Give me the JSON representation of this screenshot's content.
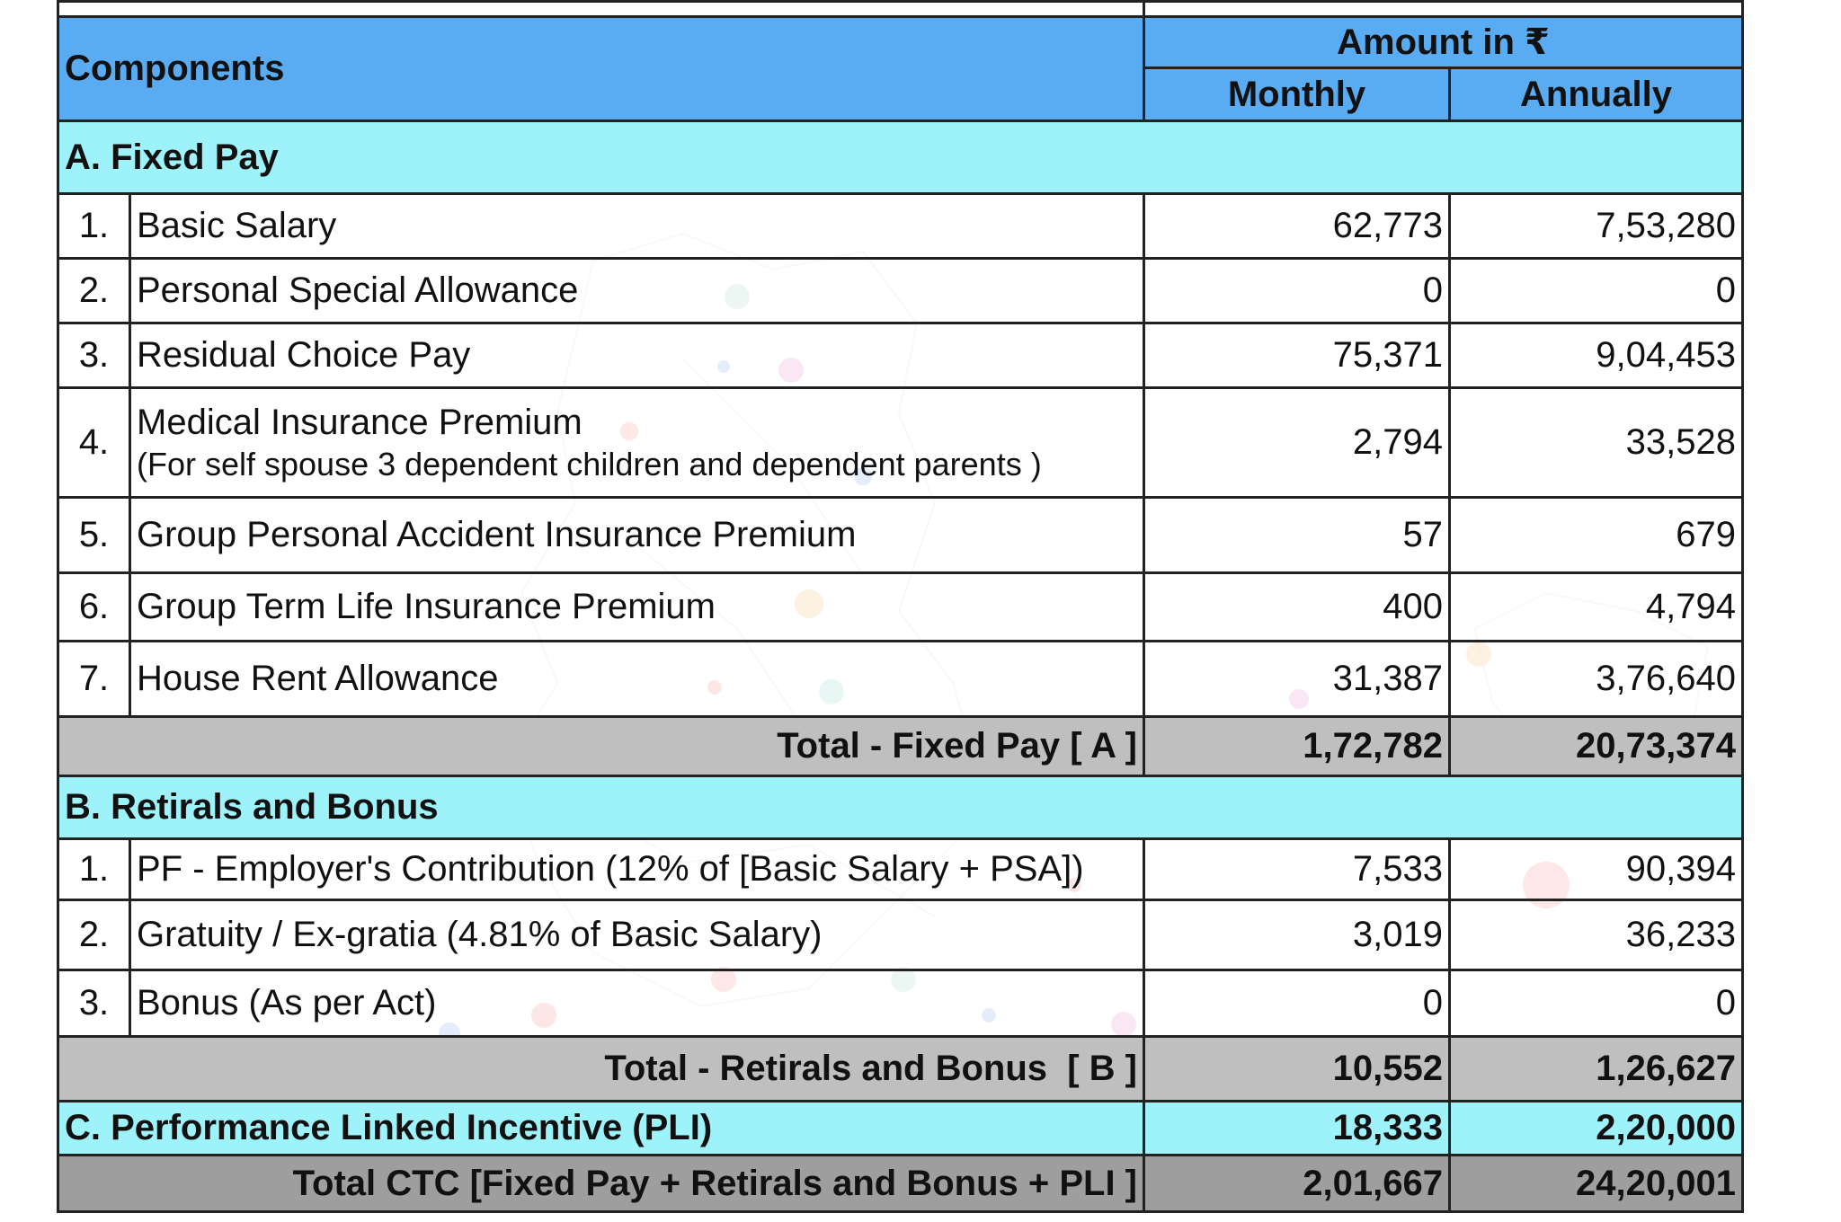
{
  "header": {
    "components": "Components",
    "amount": "Amount in ₹",
    "monthly": "Monthly",
    "annually": "Annually"
  },
  "fixed": {
    "title": "A. Fixed Pay",
    "items": [
      {
        "num": "1.",
        "label": "Basic Salary",
        "monthly": "62,773",
        "annually": "7,53,280"
      },
      {
        "num": "2.",
        "label": "Personal Special Allowance",
        "monthly": "0",
        "annually": "0"
      },
      {
        "num": "3.",
        "label": "Residual Choice Pay",
        "monthly": "75,371",
        "annually": "9,04,453"
      },
      {
        "num": "4.",
        "label": "Medical Insurance Premium",
        "note": "(For self spouse 3 dependent children and dependent parents )",
        "monthly": "2,794",
        "annually": "33,528"
      },
      {
        "num": "5.",
        "label": "Group Personal Accident Insurance Premium",
        "monthly": "57",
        "annually": "679"
      },
      {
        "num": "6.",
        "label": "Group Term Life Insurance Premium",
        "monthly": "400",
        "annually": "4,794"
      },
      {
        "num": "7.",
        "label": "House Rent Allowance",
        "monthly": "31,387",
        "annually": "3,76,640"
      }
    ],
    "total_label": "Total - Fixed Pay [ A ]",
    "total_monthly": "1,72,782",
    "total_annually": "20,73,374"
  },
  "retirals": {
    "title": "B. Retirals and Bonus",
    "items": [
      {
        "num": "1.",
        "label": "PF - Employer's Contribution (12% of [Basic Salary + PSA])",
        "monthly": "7,533",
        "annually": "90,394"
      },
      {
        "num": "2.",
        "label": "Gratuity / Ex-gratia (4.81% of Basic Salary)",
        "monthly": "3,019",
        "annually": "36,233"
      },
      {
        "num": "3.",
        "label": "Bonus (As per Act)",
        "monthly": "0",
        "annually": "0"
      }
    ],
    "total_label": "Total - Retirals and Bonus  [ B ]",
    "total_monthly": "10,552",
    "total_annually": "1,26,627"
  },
  "pli": {
    "label": "C. Performance Linked Incentive (PLI)",
    "monthly": "18,333",
    "annually": "2,20,000"
  },
  "grand_total": {
    "label": "Total CTC [Fixed Pay + Retirals and Bonus + PLI ]",
    "monthly": "2,01,667",
    "annually": "24,20,001"
  }
}
